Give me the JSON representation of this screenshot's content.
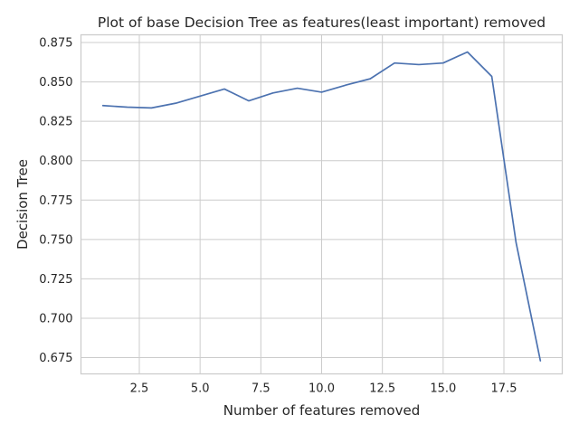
{
  "chart_data": {
    "type": "line",
    "title": "Plot of base Decision Tree as features(least important) removed",
    "xlabel": "Number of features removed",
    "ylabel": "Decision Tree",
    "xlim": [
      0.1,
      19.9
    ],
    "ylim": [
      0.6647,
      0.8799
    ],
    "x_ticks": [
      2.5,
      5.0,
      7.5,
      10.0,
      12.5,
      15.0,
      17.5
    ],
    "x_tick_labels": [
      "2.5",
      "5.0",
      "7.5",
      "10.0",
      "12.5",
      "15.0",
      "17.5"
    ],
    "y_ticks": [
      0.675,
      0.7,
      0.725,
      0.75,
      0.775,
      0.8,
      0.825,
      0.85,
      0.875
    ],
    "y_tick_labels": [
      "0.675",
      "0.700",
      "0.725",
      "0.750",
      "0.775",
      "0.800",
      "0.825",
      "0.850",
      "0.875"
    ],
    "grid": true,
    "legend": "none",
    "series": [
      {
        "color": "#4c72b0",
        "x": [
          1,
          2,
          3,
          4,
          5,
          6,
          7,
          8,
          9,
          10,
          11,
          12,
          13,
          14,
          15,
          16,
          17,
          18,
          19
        ],
        "values": [
          0.835,
          0.834,
          0.8335,
          0.8365,
          0.841,
          0.8455,
          0.838,
          0.843,
          0.846,
          0.8435,
          0.848,
          0.852,
          0.862,
          0.861,
          0.862,
          0.869,
          0.8535,
          0.748,
          0.673
        ]
      }
    ]
  }
}
